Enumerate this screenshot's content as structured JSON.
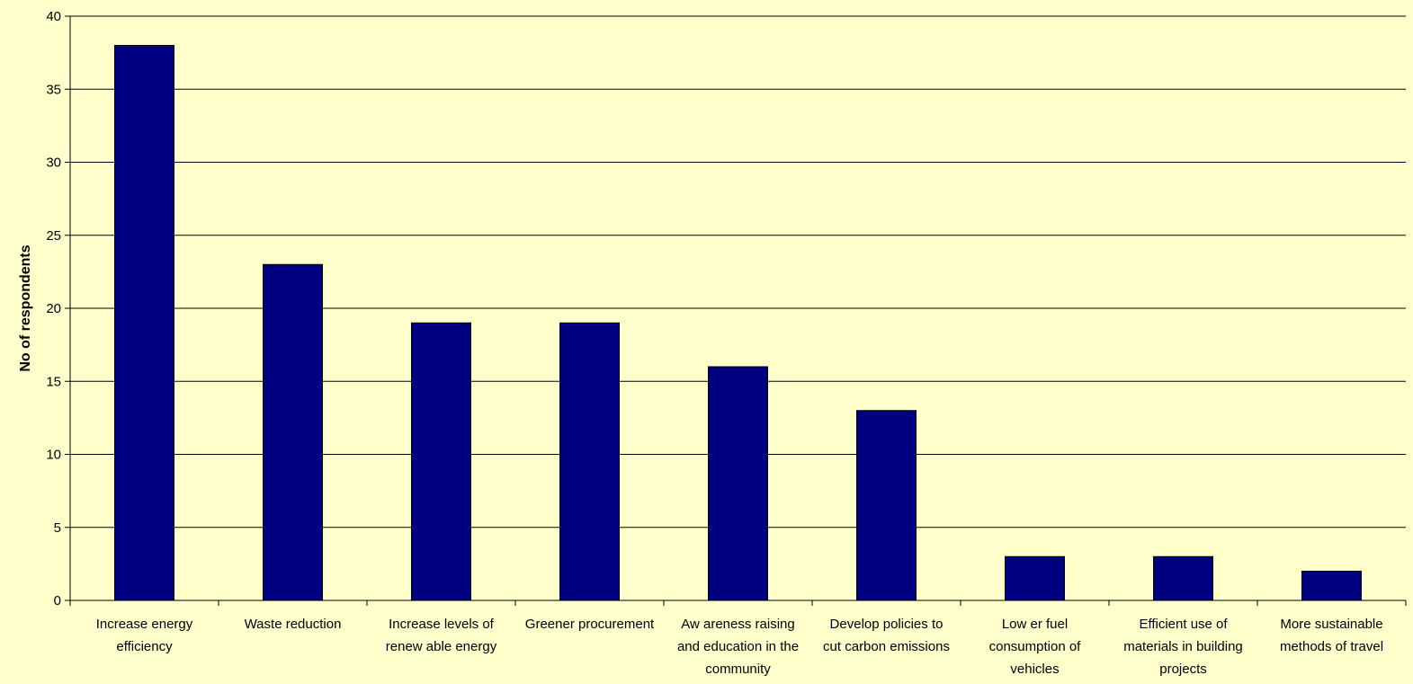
{
  "chart_data": {
    "type": "bar",
    "title": "",
    "xlabel": "",
    "ylabel": "No of respondents",
    "ylim": [
      0,
      40
    ],
    "yticks": [
      0,
      5,
      10,
      15,
      20,
      25,
      30,
      35,
      40
    ],
    "grid": true,
    "categories": [
      [
        "Increase energy",
        "efficiency"
      ],
      [
        "Waste reduction"
      ],
      [
        "Increase levels of",
        "renew able energy"
      ],
      [
        "Greener procurement"
      ],
      [
        "Aw areness raising",
        "and education in the",
        "community"
      ],
      [
        "Develop policies to",
        "cut carbon emissions"
      ],
      [
        "Low er fuel",
        "consumption of",
        "vehicles"
      ],
      [
        "Efficient use of",
        "materials in building",
        "projects"
      ],
      [
        "More sustainable",
        "methods of travel"
      ]
    ],
    "values": [
      38,
      23,
      19,
      19,
      16,
      13,
      3,
      3,
      2
    ],
    "colors": {
      "background": "#FFFFCC",
      "bar": "#000080",
      "bar_edge": "#000000",
      "grid": "#000000"
    }
  }
}
